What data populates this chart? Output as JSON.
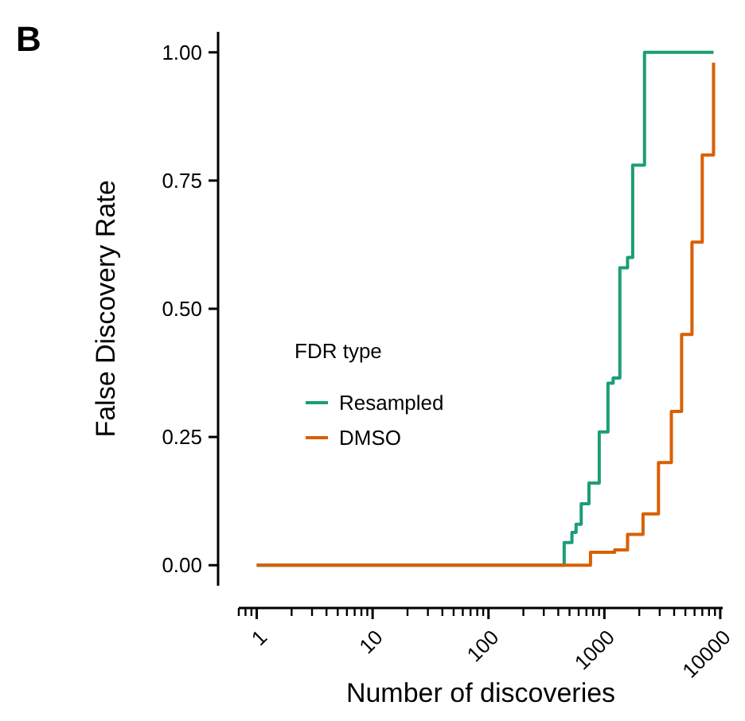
{
  "chart_data": {
    "type": "step",
    "xlabel": "Number of discoveries",
    "ylabel": "False Discovery Rate",
    "legend_title": "FDR type",
    "legend": "left",
    "log": "x",
    "grid": false,
    "annotations": [
      "B"
    ],
    "xlim": [
      0.7,
      10500
    ],
    "ylim": [
      -0.04,
      1.04
    ],
    "xticks": [
      1,
      10,
      100,
      1000,
      10000
    ],
    "yticks": [
      {
        "value": 0,
        "label": "0.00"
      },
      {
        "value": 0.25,
        "label": "0.25"
      },
      {
        "value": 0.5,
        "label": "0.50"
      },
      {
        "value": 0.75,
        "label": "0.75"
      },
      {
        "value": 1,
        "label": "1.00"
      }
    ],
    "series": [
      {
        "name": "Resampled",
        "color": "#1b9e77",
        "x": [
          1,
          450,
          525,
          570,
          631,
          736,
          903,
          1074,
          1190,
          1360,
          1585,
          1755,
          2220,
          8750
        ],
        "values": [
          0,
          0.044,
          0.064,
          0.08,
          0.12,
          0.16,
          0.26,
          0.355,
          0.365,
          0.58,
          0.6,
          0.78,
          1,
          1
        ]
      },
      {
        "name": "DMSO",
        "color": "#d95f02",
        "x": [
          1,
          759,
          1227,
          1585,
          2155,
          2930,
          3785,
          4640,
          5700,
          6990,
          8750
        ],
        "values": [
          0,
          0.025,
          0.03,
          0.06,
          0.1,
          0.2,
          0.3,
          0.45,
          0.63,
          0.8,
          0.98
        ]
      }
    ]
  }
}
